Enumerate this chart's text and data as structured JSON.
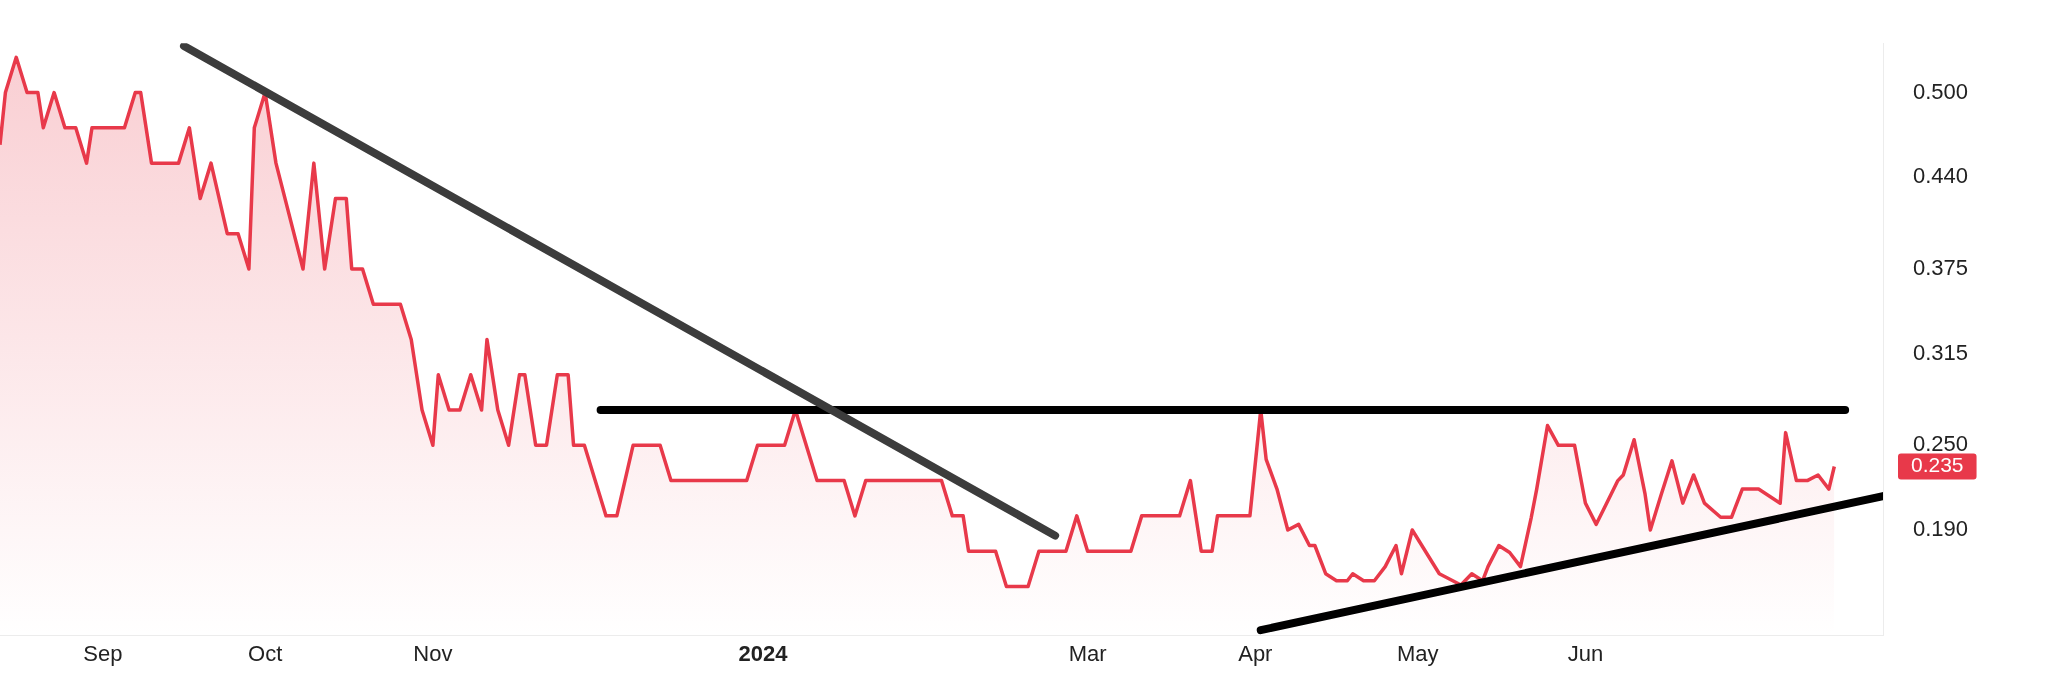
{
  "chart_data": {
    "type": "area",
    "xticks": [
      {
        "value": "2023-09-01",
        "label": "Sep"
      },
      {
        "value": "2023-10-01",
        "label": "Oct"
      },
      {
        "value": "2023-11-01",
        "label": "Nov"
      },
      {
        "value": "2024-01-01",
        "label": "2024"
      },
      {
        "value": "2024-03-01",
        "label": "Mar"
      },
      {
        "value": "2024-04-01",
        "label": "Apr"
      },
      {
        "value": "2024-05-01",
        "label": "May"
      },
      {
        "value": "2024-06-01",
        "label": "Jun"
      }
    ],
    "xlim": [
      "2023-08-13",
      "2024-07-26"
    ],
    "ylim": [
      0.115,
      0.535
    ],
    "yticks": [
      {
        "value": 0.5,
        "label": "0.500"
      },
      {
        "value": 0.44,
        "label": "0.440"
      },
      {
        "value": 0.375,
        "label": "0.375"
      },
      {
        "value": 0.315,
        "label": "0.315"
      },
      {
        "value": 0.25,
        "label": "0.250"
      },
      {
        "value": 0.19,
        "label": "0.190"
      }
    ],
    "grid": false,
    "legend": false,
    "marker": "none",
    "series": [
      {
        "color": "#e8394a",
        "x": [
          "2023-08-13",
          "2023-08-14",
          "2023-08-16",
          "2023-08-18",
          "2023-08-20",
          "2023-08-21",
          "2023-08-23",
          "2023-08-25",
          "2023-08-27",
          "2023-08-29",
          "2023-08-30",
          "2023-09-05",
          "2023-09-07",
          "2023-09-08",
          "2023-09-10",
          "2023-09-15",
          "2023-09-17",
          "2023-09-19",
          "2023-09-21",
          "2023-09-24",
          "2023-09-26",
          "2023-09-28",
          "2023-09-29",
          "2023-10-01",
          "2023-10-03",
          "2023-10-08",
          "2023-10-10",
          "2023-10-12",
          "2023-10-14",
          "2023-10-16",
          "2023-10-17",
          "2023-10-19",
          "2023-10-21",
          "2023-10-26",
          "2023-10-28",
          "2023-10-30",
          "2023-11-01",
          "2023-11-02",
          "2023-11-04",
          "2023-11-06",
          "2023-11-08",
          "2023-11-10",
          "2023-11-11",
          "2023-11-13",
          "2023-11-15",
          "2023-11-17",
          "2023-11-18",
          "2023-11-20",
          "2023-11-22",
          "2023-11-24",
          "2023-11-26",
          "2023-11-27",
          "2023-11-29",
          "2023-12-03",
          "2023-12-05",
          "2023-12-08",
          "2023-12-13",
          "2023-12-15",
          "2023-12-29",
          "2023-12-31",
          "2024-01-05",
          "2024-01-07",
          "2024-01-11",
          "2024-01-16",
          "2024-01-18",
          "2024-01-20",
          "2024-02-03",
          "2024-02-05",
          "2024-02-07",
          "2024-02-08",
          "2024-02-13",
          "2024-02-15",
          "2024-02-19",
          "2024-02-21",
          "2024-02-26",
          "2024-02-28",
          "2024-03-01",
          "2024-03-09",
          "2024-03-11",
          "2024-03-18",
          "2024-03-20",
          "2024-03-22",
          "2024-03-24",
          "2024-03-25",
          "2024-03-31",
          "2024-04-02",
          "2024-04-03",
          "2024-04-05",
          "2024-04-07",
          "2024-04-09",
          "2024-04-11",
          "2024-04-12",
          "2024-04-14",
          "2024-04-16",
          "2024-04-18",
          "2024-04-19",
          "2024-04-21",
          "2024-04-23",
          "2024-04-25",
          "2024-04-27",
          "2024-04-28",
          "2024-04-30",
          "2024-05-05",
          "2024-05-09",
          "2024-05-11",
          "2024-05-13",
          "2024-05-14",
          "2024-05-16",
          "2024-05-18",
          "2024-05-20",
          "2024-05-22",
          "2024-05-23",
          "2024-05-25",
          "2024-05-27",
          "2024-05-30",
          "2024-06-01",
          "2024-06-03",
          "2024-06-07",
          "2024-06-08",
          "2024-06-10",
          "2024-06-12",
          "2024-06-13",
          "2024-06-15",
          "2024-06-17",
          "2024-06-19",
          "2024-06-21",
          "2024-06-23",
          "2024-06-26",
          "2024-06-28",
          "2024-06-30",
          "2024-07-03",
          "2024-07-07",
          "2024-07-08",
          "2024-07-10",
          "2024-07-12",
          "2024-07-14",
          "2024-07-16",
          "2024-07-17"
        ],
        "values": [
          0.463,
          0.5,
          0.525,
          0.5,
          0.5,
          0.475,
          0.5,
          0.475,
          0.475,
          0.45,
          0.475,
          0.475,
          0.5,
          0.5,
          0.45,
          0.45,
          0.475,
          0.425,
          0.45,
          0.4,
          0.4,
          0.375,
          0.475,
          0.5,
          0.45,
          0.375,
          0.45,
          0.375,
          0.425,
          0.425,
          0.375,
          0.375,
          0.35,
          0.35,
          0.325,
          0.275,
          0.25,
          0.3,
          0.275,
          0.275,
          0.3,
          0.275,
          0.325,
          0.275,
          0.25,
          0.3,
          0.3,
          0.25,
          0.25,
          0.3,
          0.3,
          0.25,
          0.25,
          0.2,
          0.2,
          0.25,
          0.25,
          0.225,
          0.225,
          0.25,
          0.25,
          0.275,
          0.225,
          0.225,
          0.2,
          0.225,
          0.225,
          0.2,
          0.2,
          0.175,
          0.175,
          0.15,
          0.15,
          0.175,
          0.175,
          0.2,
          0.175,
          0.175,
          0.2,
          0.2,
          0.225,
          0.175,
          0.175,
          0.2,
          0.2,
          0.275,
          0.24,
          0.219,
          0.19,
          0.194,
          0.179,
          0.179,
          0.159,
          0.154,
          0.154,
          0.159,
          0.154,
          0.154,
          0.164,
          0.179,
          0.159,
          0.19,
          0.159,
          0.151,
          0.159,
          0.154,
          0.164,
          0.179,
          0.174,
          0.164,
          0.199,
          0.219,
          0.264,
          0.25,
          0.25,
          0.209,
          0.194,
          0.225,
          0.229,
          0.254,
          0.216,
          0.19,
          0.215,
          0.239,
          0.209,
          0.229,
          0.209,
          0.199,
          0.199,
          0.219,
          0.219,
          0.209,
          0.259,
          0.225,
          0.225,
          0.229,
          0.219,
          0.235
        ]
      },
      {
        "type": "line",
        "color": "#3c3c3c",
        "x": [
          "2023-09-16",
          "2024-02-24"
        ],
        "values": [
          0.533,
          0.186
        ]
      },
      {
        "type": "line",
        "color": "#000000",
        "x": [
          "2023-12-02",
          "2024-07-19"
        ],
        "values": [
          0.275,
          0.275
        ]
      },
      {
        "type": "line",
        "color": "#000000",
        "x": [
          "2024-04-02",
          "2024-07-26"
        ],
        "values": [
          0.119,
          0.214
        ]
      }
    ],
    "annotations": [
      "0.235"
    ]
  }
}
